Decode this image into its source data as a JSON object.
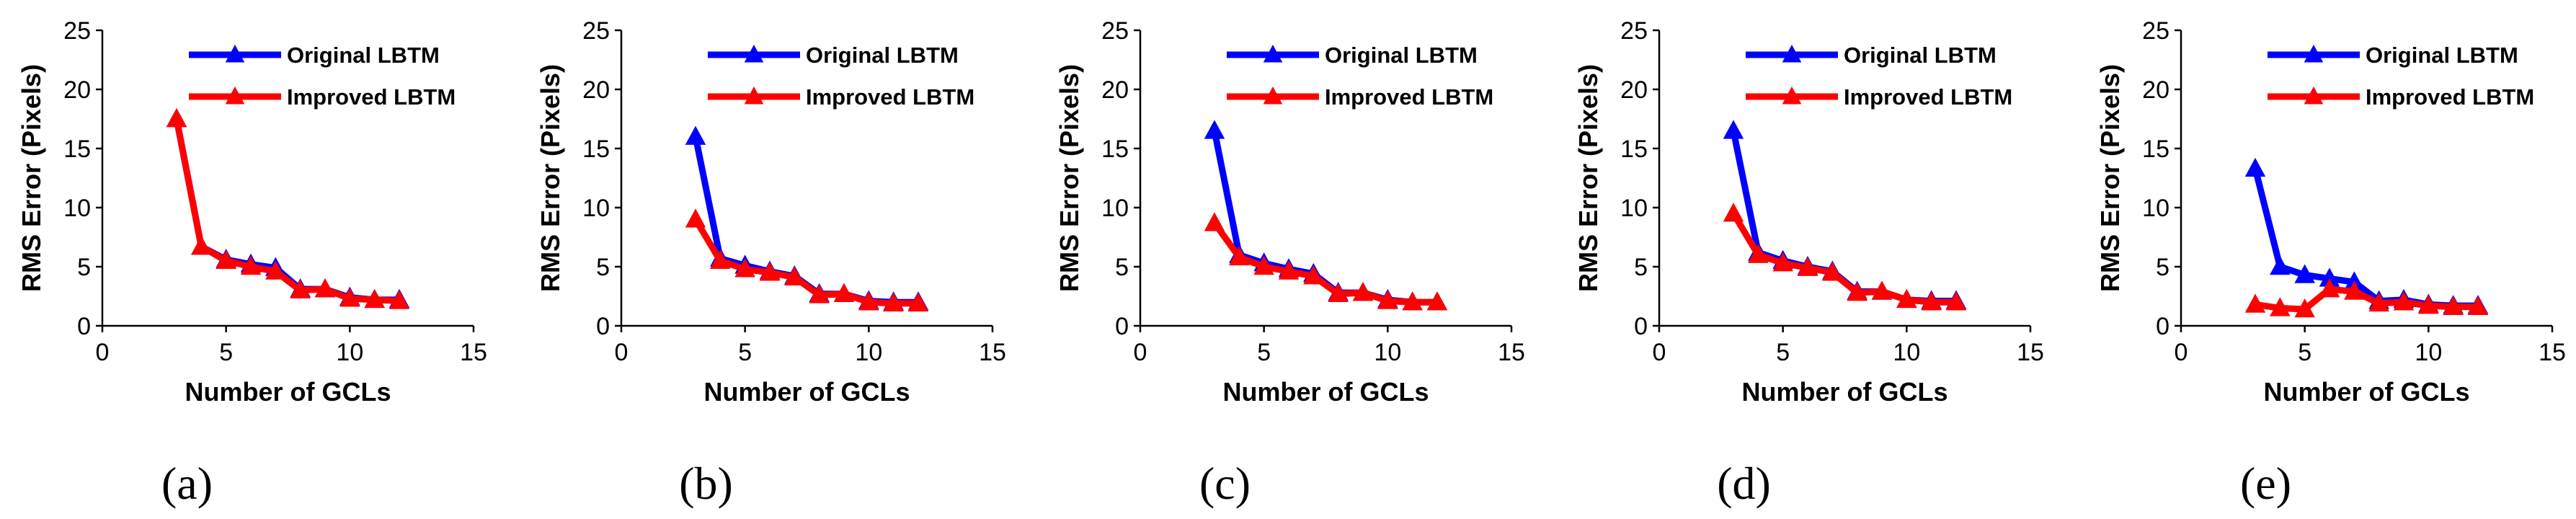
{
  "chart_data": [
    {
      "type": "line",
      "panel_label": "(a)",
      "xlabel": "Number of GCLs",
      "ylabel": "RMS Error (Pixels)",
      "xlim": [
        0,
        15
      ],
      "ylim": [
        0,
        25
      ],
      "xticks": [
        0,
        5,
        10,
        15
      ],
      "yticks": [
        0,
        5,
        10,
        15,
        20,
        25
      ],
      "legend_position": "top-right",
      "x": [
        3,
        4,
        5,
        6,
        7,
        8,
        9,
        10,
        11,
        12
      ],
      "series": [
        {
          "name": "Original LBTM",
          "color": "#0000ff",
          "values": [
            17.5,
            6.7,
            5.6,
            5.2,
            4.9,
            3.1,
            3.1,
            2.4,
            2.2,
            2.2
          ]
        },
        {
          "name": "Improved LBTM",
          "color": "#ff0000",
          "values": [
            17.5,
            6.7,
            5.5,
            5.0,
            4.6,
            3.0,
            3.1,
            2.3,
            2.2,
            2.1
          ]
        }
      ]
    },
    {
      "type": "line",
      "panel_label": "(b)",
      "xlabel": "Number of GCLs",
      "ylabel": "RMS Error (Pixels)",
      "xlim": [
        0,
        15
      ],
      "ylim": [
        0,
        25
      ],
      "xticks": [
        0,
        5,
        10,
        15
      ],
      "yticks": [
        0,
        5,
        10,
        15,
        20,
        25
      ],
      "legend_position": "top-right",
      "x": [
        3,
        4,
        5,
        6,
        7,
        8,
        9,
        10,
        11,
        12
      ],
      "series": [
        {
          "name": "Original LBTM",
          "color": "#0000ff",
          "values": [
            16.0,
            5.7,
            5.1,
            4.6,
            4.2,
            2.7,
            2.7,
            2.1,
            2.0,
            2.0
          ]
        },
        {
          "name": "Improved LBTM",
          "color": "#ff0000",
          "values": [
            9.0,
            5.5,
            4.8,
            4.5,
            4.1,
            2.6,
            2.7,
            2.0,
            1.9,
            1.9
          ]
        }
      ]
    },
    {
      "type": "line",
      "panel_label": "(c)",
      "xlabel": "Number of GCLs",
      "ylabel": "RMS Error (Pixels)",
      "xlim": [
        0,
        15
      ],
      "ylim": [
        0,
        25
      ],
      "xticks": [
        0,
        5,
        10,
        15
      ],
      "yticks": [
        0,
        5,
        10,
        15,
        20,
        25
      ],
      "legend_position": "top-right",
      "x": [
        3,
        4,
        5,
        6,
        7,
        8,
        9,
        10,
        11,
        12
      ],
      "series": [
        {
          "name": "Original LBTM",
          "color": "#0000ff",
          "values": [
            16.5,
            6.0,
            5.3,
            4.8,
            4.4,
            2.8,
            2.8,
            2.2,
            2.0,
            2.0
          ]
        },
        {
          "name": "Improved LBTM",
          "color": "#ff0000",
          "values": [
            8.7,
            5.8,
            5.0,
            4.6,
            4.2,
            2.7,
            2.8,
            2.1,
            2.0,
            2.0
          ]
        }
      ]
    },
    {
      "type": "line",
      "panel_label": "(d)",
      "xlabel": "Number of GCLs",
      "ylabel": "RMS Error (Pixels)",
      "xlim": [
        0,
        15
      ],
      "ylim": [
        0,
        25
      ],
      "xticks": [
        0,
        5,
        10,
        15
      ],
      "yticks": [
        0,
        5,
        10,
        15,
        20,
        25
      ],
      "legend_position": "top-right",
      "x": [
        3,
        4,
        5,
        6,
        7,
        8,
        9,
        10,
        11,
        12
      ],
      "series": [
        {
          "name": "Original LBTM",
          "color": "#0000ff",
          "values": [
            16.5,
            6.2,
            5.5,
            5.0,
            4.6,
            2.9,
            2.9,
            2.2,
            2.1,
            2.1
          ]
        },
        {
          "name": "Improved LBTM",
          "color": "#ff0000",
          "values": [
            9.5,
            6.0,
            5.3,
            4.9,
            4.5,
            2.8,
            2.9,
            2.2,
            2.0,
            2.0
          ]
        }
      ]
    },
    {
      "type": "line",
      "panel_label": "(e)",
      "xlabel": "Number of GCLs",
      "ylabel": "RMS Error (Pixels)",
      "xlim": [
        0,
        15
      ],
      "ylim": [
        0,
        25
      ],
      "xticks": [
        0,
        5,
        10,
        15
      ],
      "yticks": [
        0,
        5,
        10,
        15,
        20,
        25
      ],
      "legend_position": "top-right",
      "x": [
        3,
        4,
        5,
        6,
        7,
        8,
        9,
        10,
        11,
        12
      ],
      "series": [
        {
          "name": "Original LBTM",
          "color": "#0000ff",
          "values": [
            13.3,
            5.0,
            4.3,
            4.0,
            3.7,
            2.1,
            2.2,
            1.8,
            1.7,
            1.7
          ]
        },
        {
          "name": "Improved LBTM",
          "color": "#ff0000",
          "values": [
            1.8,
            1.5,
            1.4,
            3.1,
            2.9,
            1.9,
            2.0,
            1.7,
            1.6,
            1.6
          ]
        }
      ]
    }
  ]
}
